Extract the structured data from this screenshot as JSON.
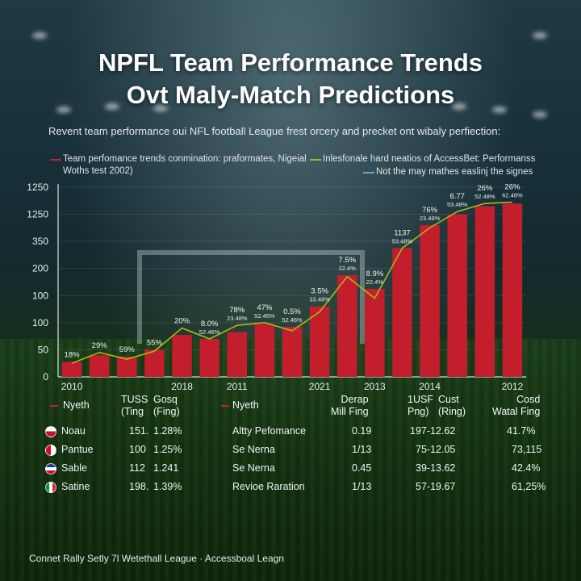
{
  "header": {
    "title_line1": "NPFL Team Performance Trends",
    "title_line2": "Ovt Maly-Match Predictions",
    "subtitle": "Revent team performance oui NFL football League frest orcery and precket ont wibaly perfiection:"
  },
  "legend": [
    {
      "text": "Team perfomance trends conmination: praformates, Nigeial Woths test 2002)",
      "color": "#c71f2b"
    },
    {
      "text": "Inlesfonale hard neatios of AccessBet: Performanss",
      "color": "#9ab82a"
    },
    {
      "text": "Not the may mathes easlinj the signes",
      "color": "#6aa6d6"
    }
  ],
  "chart_data": {
    "type": "bar",
    "y_tick_labels": [
      "0",
      "50",
      "100",
      "100",
      "200",
      "350",
      "1250",
      "1250"
    ],
    "x_tick_labels": [
      {
        "label": "2010",
        "index": 0
      },
      {
        "label": "2018",
        "index": 4
      },
      {
        "label": "2011",
        "index": 6
      },
      {
        "label": "2021",
        "index": 9
      },
      {
        "label": "2013",
        "index": 11
      },
      {
        "label": "2014",
        "index": 13
      },
      {
        "label": "2012",
        "index": 16
      }
    ],
    "bar_values": [
      0.55,
      0.8,
      0.75,
      1.0,
      1.55,
      1.4,
      1.65,
      1.95,
      1.85,
      2.6,
      3.75,
      3.25,
      4.75,
      5.6,
      6.0,
      6.3,
      6.4
    ],
    "line_values": [
      0.5,
      0.9,
      0.65,
      0.95,
      1.8,
      1.4,
      1.9,
      2.0,
      1.7,
      2.4,
      3.7,
      2.9,
      4.75,
      5.5,
      6.1,
      6.4,
      6.45
    ],
    "data_labels": [
      {
        "top": "18%",
        "bottom": ""
      },
      {
        "top": "29%",
        "bottom": ""
      },
      {
        "top": "59%",
        "bottom": ""
      },
      {
        "top": "55%",
        "bottom": ""
      },
      {
        "top": "20%",
        "bottom": ""
      },
      {
        "top": "8.0%",
        "bottom": "52.46%"
      },
      {
        "top": "78%",
        "bottom": "23.48%"
      },
      {
        "top": "47%",
        "bottom": "52.46%"
      },
      {
        "top": "0.5%",
        "bottom": "52.46%"
      },
      {
        "top": "3.5%",
        "bottom": "33.48%"
      },
      {
        "top": "7.5%",
        "bottom": "22.4%"
      },
      {
        "top": "8.9%",
        "bottom": "22.4%"
      },
      {
        "top": "1137",
        "bottom": "53.48%"
      },
      {
        "top": "76%",
        "bottom": "23.48%"
      },
      {
        "top": "6.77",
        "bottom": "53.48%"
      },
      {
        "top": "26%",
        "bottom": "52.48%"
      },
      {
        "top": "26%",
        "bottom": "62.48%"
      }
    ],
    "colors": {
      "bar": "#c21e2c",
      "line": "#a7b81f",
      "axis": "#d7dde0"
    }
  },
  "table": {
    "left_headers": [
      "Nyeth",
      "TUSS\n(Ting",
      "Gosq\n(Fing)"
    ],
    "right_headers": [
      "Nyeth",
      "Derap\nMill Fing",
      "1USF\nPng)",
      "Cust\n(Ring)",
      "Cosd\nWatal Fing"
    ],
    "rows": [
      {
        "flag": "flag-icon",
        "flag_colors": [
          "#ffffff",
          "#c8102e"
        ],
        "team": "Noau",
        "v1": "151.",
        "v2": "1.28%",
        "metric": "Altty Pefomance",
        "r1": "0.19",
        "r2": "197-12.62",
        "r3": "41.7%"
      },
      {
        "flag": "flag-icon",
        "flag_colors": [
          "#c8102e",
          "#ffffff"
        ],
        "team": "Pantue",
        "v1": "100",
        "v2": "1.25%",
        "metric": "Se Nerna",
        "r1": "1/13",
        "r2": "75-12.05",
        "r3": "73,115"
      },
      {
        "flag": "flag-icon",
        "flag_colors": [
          "#1d3b8f",
          "#c8102e"
        ],
        "team": "Sable",
        "v1": "112",
        "v2": "1.241",
        "metric": "Se Nerna",
        "r1": "0.45",
        "r2": "39-13.62",
        "r3": "42.4%"
      },
      {
        "flag": "flag-icon",
        "flag_colors": [
          "#009246",
          "#ce2b37"
        ],
        "team": "Satine",
        "v1": "198.",
        "v2": "1.39%",
        "metric": "Revioe Raration",
        "r1": "1/13",
        "r2": "57-19.67",
        "r3": "61,25%"
      }
    ]
  },
  "footer": {
    "text": "Connet Rally Setly 7l Wetethall League · Accessboal Leagn"
  }
}
